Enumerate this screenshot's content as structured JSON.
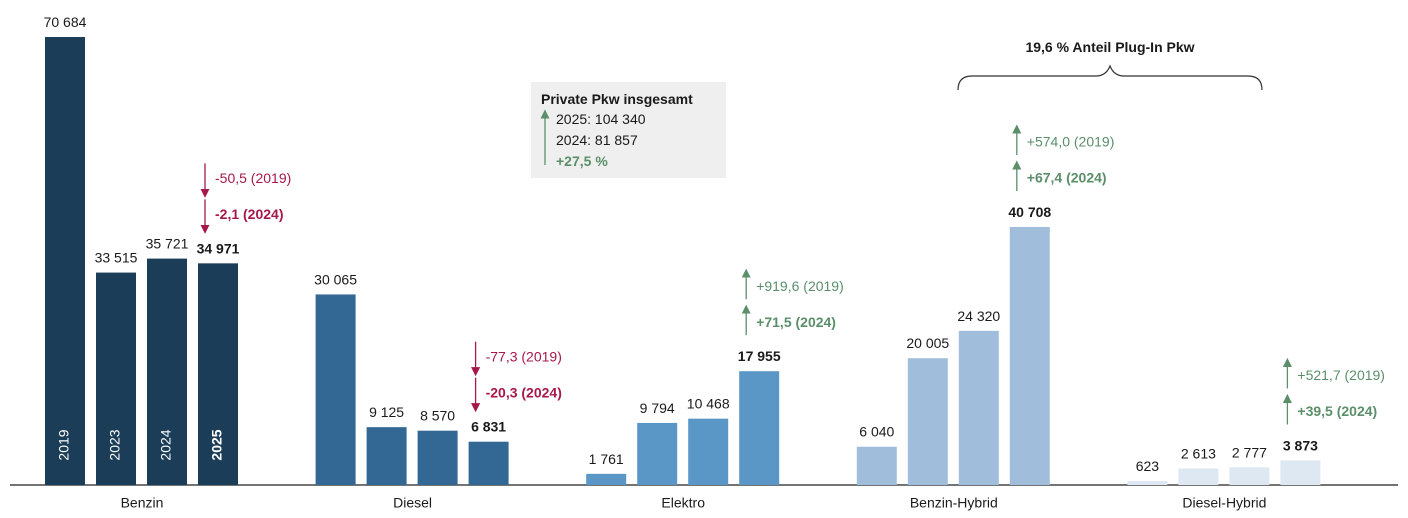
{
  "chart_data": {
    "type": "bar",
    "categories": [
      "Benzin",
      "Diesel",
      "Elektro",
      "Benzin-Hybrid",
      "Diesel-Hybrid"
    ],
    "colors": [
      "#1b3d58",
      "#336895",
      "#5a97c6",
      "#a0bedb",
      "#dde8f3"
    ],
    "series": [
      {
        "name": "2019",
        "values": [
          70684,
          30065,
          1761,
          6040,
          623
        ],
        "value_labels": [
          "70 684",
          "30 065",
          "1 761",
          "6 040",
          "623"
        ]
      },
      {
        "name": "2023",
        "values": [
          33515,
          9125,
          9794,
          20005,
          2613
        ],
        "value_labels": [
          "33 515",
          "9 125",
          "9 794",
          "20 005",
          "2 613"
        ]
      },
      {
        "name": "2024",
        "values": [
          35721,
          8570,
          10468,
          24320,
          2777
        ],
        "value_labels": [
          "35 721",
          "8 570",
          "10 468",
          "24 320",
          "2 777"
        ]
      },
      {
        "name": "2025",
        "values": [
          34971,
          6831,
          17955,
          40708,
          3873
        ],
        "value_labels": [
          "34 971",
          "6 831",
          "17 955",
          "40 708",
          "3 873"
        ]
      }
    ],
    "changes": [
      [
        "-50,5 (2019)",
        "-2,1 (2024)"
      ],
      [
        "-77,3 (2019)",
        "-20,3 (2024)"
      ],
      [
        "+919,6 (2019)",
        "+71,5 (2024)"
      ],
      [
        "+574,0 (2019)",
        "+67,4 (2024)"
      ],
      [
        "+521,7 (2019)",
        "+39,5 (2024)"
      ]
    ],
    "info": {
      "title": "Private Pkw insgesamt",
      "lines": [
        "2025: 104 340",
        "2024: 81 857",
        "+27,5 %"
      ]
    },
    "bracket_label": "19,6 % Anteil Plug-In Pkw"
  }
}
